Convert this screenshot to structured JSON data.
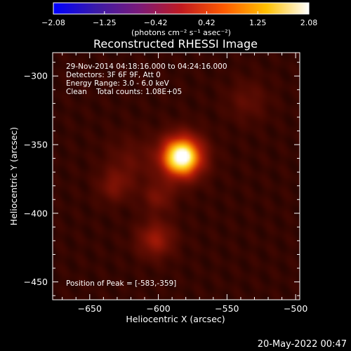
{
  "chart_data": {
    "type": "heatmap",
    "title": "Reconstructed RHESSI Image",
    "xlabel": "Heliocentric X (arcsec)",
    "ylabel": "Heliocentric Y (arcsec)",
    "xlim": [
      -677,
      -497
    ],
    "ylim": [
      -463,
      -283
    ],
    "x_ticks": [
      -650,
      -600,
      -550,
      -500
    ],
    "x_tick_labels": [
      "−650",
      "−600",
      "−550",
      "−500"
    ],
    "y_ticks": [
      -300,
      -350,
      -400,
      -450
    ],
    "y_tick_labels": [
      "−300",
      "−350",
      "−400",
      "−450"
    ],
    "colorbar": {
      "range": [
        -2.08,
        2.08
      ],
      "tick_labels": [
        "−2.08",
        "−1.25",
        "−0.42",
        "0.42",
        "1.25",
        "2.08"
      ],
      "units_label": "(photons cm⁻² s⁻¹ asec⁻²)",
      "colors": [
        "#0000ff",
        "#3a1aa8",
        "#7a1a7a",
        "#c01a20",
        "#ff5a00",
        "#ffc000",
        "#ffffff"
      ]
    },
    "annotations": [
      "29-Nov-2014 04:18:16.000 to 04:24:16.000",
      "Detectors: 3F 6F 9F, Att 0",
      "Energy Range: 3.0 - 6.0 keV",
      "Clean    Total counts: 1.08E+05"
    ],
    "peak_label": "Position of Peak = [-583,-359]",
    "sources": [
      {
        "x": -583,
        "y": -359,
        "peak": 2.08,
        "sigma": 10
      },
      {
        "x": -602,
        "y": -419,
        "peak": 0.55,
        "sigma": 9
      },
      {
        "x": -632,
        "y": -380,
        "peak": 0.35,
        "sigma": 8
      },
      {
        "x": -600,
        "y": -388,
        "peak": 0.35,
        "sigma": 8
      },
      {
        "x": -620,
        "y": -362,
        "peak": 0.22,
        "sigma": 12
      },
      {
        "x": -535,
        "y": -318,
        "peak": 0.22,
        "sigma": 10
      }
    ],
    "background_level": 0.18
  },
  "footer": {
    "timestamp": "20-May-2022 00:47"
  }
}
